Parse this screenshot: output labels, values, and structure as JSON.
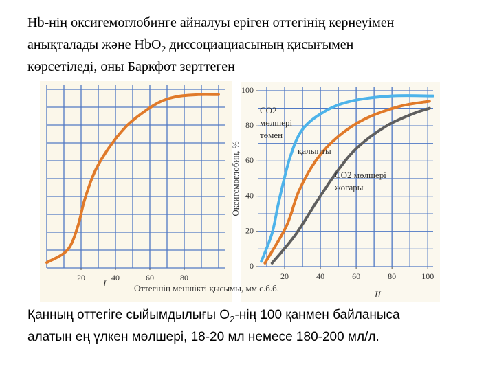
{
  "title": {
    "lines": [
      [
        {
          "text": "Hb-нің оксигемоглобинге айналуы еріген оттегінің кернеуімен"
        }
      ],
      [
        {
          "text": "анықталады және HbO"
        },
        {
          "text": "2",
          "sub": true
        },
        {
          "text": " диссоциациасының қисығымен"
        }
      ],
      [
        {
          "text": "көрсетіледі, оны Баркфот зерттеген"
        }
      ]
    ]
  },
  "chart_data": [
    {
      "type": "line",
      "label": "I",
      "xlim": [
        0,
        104
      ],
      "ylim": [
        0,
        100
      ],
      "xticks": [
        20,
        40,
        60,
        80
      ],
      "grid": true,
      "grid_step": 10,
      "series": [
        {
          "color": "#e07a2a",
          "x": [
            0,
            12,
            18,
            22,
            28,
            36,
            46,
            56,
            66,
            76,
            88,
            100
          ],
          "values": [
            3,
            10,
            23,
            38,
            54,
            67,
            79,
            87,
            93,
            96,
            97,
            97
          ]
        }
      ]
    },
    {
      "type": "line",
      "label": "II",
      "ylabel": "Оксигемоглобин, %",
      "xlim": [
        5,
        103
      ],
      "ylim": [
        0,
        100
      ],
      "xticks": [
        20,
        40,
        60,
        80,
        100
      ],
      "yticks": [
        0,
        20,
        40,
        60,
        80,
        100
      ],
      "grid": true,
      "grid_step": 10,
      "series": [
        {
          "color": "#4db3ea",
          "x": [
            7,
            13,
            17,
            23,
            30,
            42,
            57,
            80,
            103
          ],
          "values": [
            3,
            19,
            38,
            62,
            78,
            88,
            94,
            97,
            97
          ]
        },
        {
          "color": "#e07a2a",
          "x": [
            9,
            21,
            28,
            38,
            50,
            65,
            84,
            101
          ],
          "values": [
            2,
            23,
            43,
            61,
            74,
            84,
            91,
            94
          ]
        },
        {
          "color": "#5f5f5f",
          "x": [
            13,
            26,
            38,
            50,
            61,
            77,
            92,
            101
          ],
          "values": [
            2,
            18,
            37,
            55,
            68,
            80,
            87,
            90
          ]
        }
      ],
      "annotations": [
        [
          "CO2",
          "мөлшері",
          "төмен"
        ],
        [
          "қалыпты"
        ],
        [
          "CO2 мөлшері",
          "жоғары"
        ]
      ]
    }
  ],
  "x_axis_label": "Оттегінің меншікті қысымы, мм с.б.б.",
  "footer": {
    "lines": [
      [
        {
          "text": "Қанның оттегіге сыйымдылығы O"
        },
        {
          "text": "2",
          "sub": true
        },
        {
          "text": "-нің 100 қанмен байланыса"
        }
      ],
      [
        {
          "text": "алатын ең үлкен мөлшері, 18-20 мл немесе 180-200 мл/л."
        }
      ]
    ]
  }
}
